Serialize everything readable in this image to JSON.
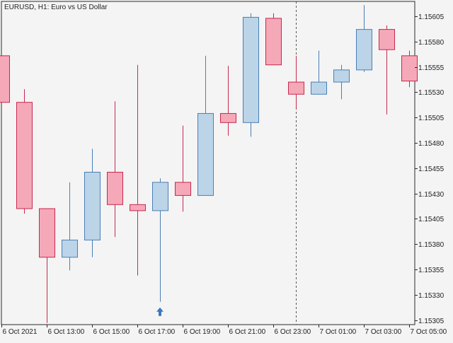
{
  "chart_data": {
    "type": "candlestick",
    "title": "EURUSD, H1:  Euro vs US Dollar",
    "price_ticks": [
      "1.15605",
      "1.15580",
      "1.15555",
      "1.15530",
      "1.15505",
      "1.15480",
      "1.15455",
      "1.15430",
      "1.15405",
      "1.15380",
      "1.15355",
      "1.15330",
      "1.15305"
    ],
    "time_ticks": [
      "6 Oct 2021",
      "6 Oct 13:00",
      "6 Oct 15:00",
      "6 Oct 17:00",
      "6 Oct 19:00",
      "6 Oct 21:00",
      "6 Oct 23:00",
      "7 Oct 01:00",
      "7 Oct 03:00",
      "7 Oct 05:00"
    ],
    "ylim": [
      1.1529,
      1.15623
    ],
    "candles": [
      {
        "open": 1.15566,
        "high": 1.15566,
        "low": 1.1552,
        "close": 1.1552
      },
      {
        "open": 1.1552,
        "high": 1.15533,
        "low": 1.1541,
        "close": 1.15415
      },
      {
        "open": 1.15415,
        "high": 1.15415,
        "low": 1.15302,
        "close": 1.15367
      },
      {
        "open": 1.15367,
        "high": 1.15441,
        "low": 1.15354,
        "close": 1.15384
      },
      {
        "open": 1.15384,
        "high": 1.15474,
        "low": 1.15367,
        "close": 1.15451
      },
      {
        "open": 1.15451,
        "high": 1.15521,
        "low": 1.15387,
        "close": 1.15419
      },
      {
        "open": 1.15419,
        "high": 1.15557,
        "low": 1.15349,
        "close": 1.15413
      },
      {
        "open": 1.15413,
        "high": 1.15445,
        "low": 1.15323,
        "close": 1.15441
      },
      {
        "open": 1.15441,
        "high": 1.15497,
        "low": 1.15412,
        "close": 1.15428
      },
      {
        "open": 1.15428,
        "high": 1.15566,
        "low": 1.15428,
        "close": 1.15509
      },
      {
        "open": 1.15509,
        "high": 1.15556,
        "low": 1.15487,
        "close": 1.155
      },
      {
        "open": 1.155,
        "high": 1.15608,
        "low": 1.15486,
        "close": 1.15604
      },
      {
        "open": 1.15603,
        "high": 1.15608,
        "low": 1.15557,
        "close": 1.15557
      },
      {
        "open": 1.1554,
        "high": 1.15566,
        "low": 1.15513,
        "close": 1.15528
      },
      {
        "open": 1.15528,
        "high": 1.15571,
        "low": 1.15528,
        "close": 1.1554
      },
      {
        "open": 1.1554,
        "high": 1.15557,
        "low": 1.15523,
        "close": 1.15552
      },
      {
        "open": 1.15552,
        "high": 1.15616,
        "low": 1.1555,
        "close": 1.15592
      },
      {
        "open": 1.15592,
        "high": 1.15596,
        "low": 1.15508,
        "close": 1.15572
      },
      {
        "open": 1.15566,
        "high": 1.15571,
        "low": 1.15535,
        "close": 1.15541
      }
    ],
    "up_color": "#bcd4e8",
    "up_border": "#4a7fb5",
    "down_color": "#f5a8b8",
    "down_border": "#c8284e",
    "marker_color": "#3a77c0",
    "markers": [
      {
        "candle": 7,
        "type": "arrow-up"
      }
    ],
    "vline_candle": 13,
    "grid": false
  }
}
